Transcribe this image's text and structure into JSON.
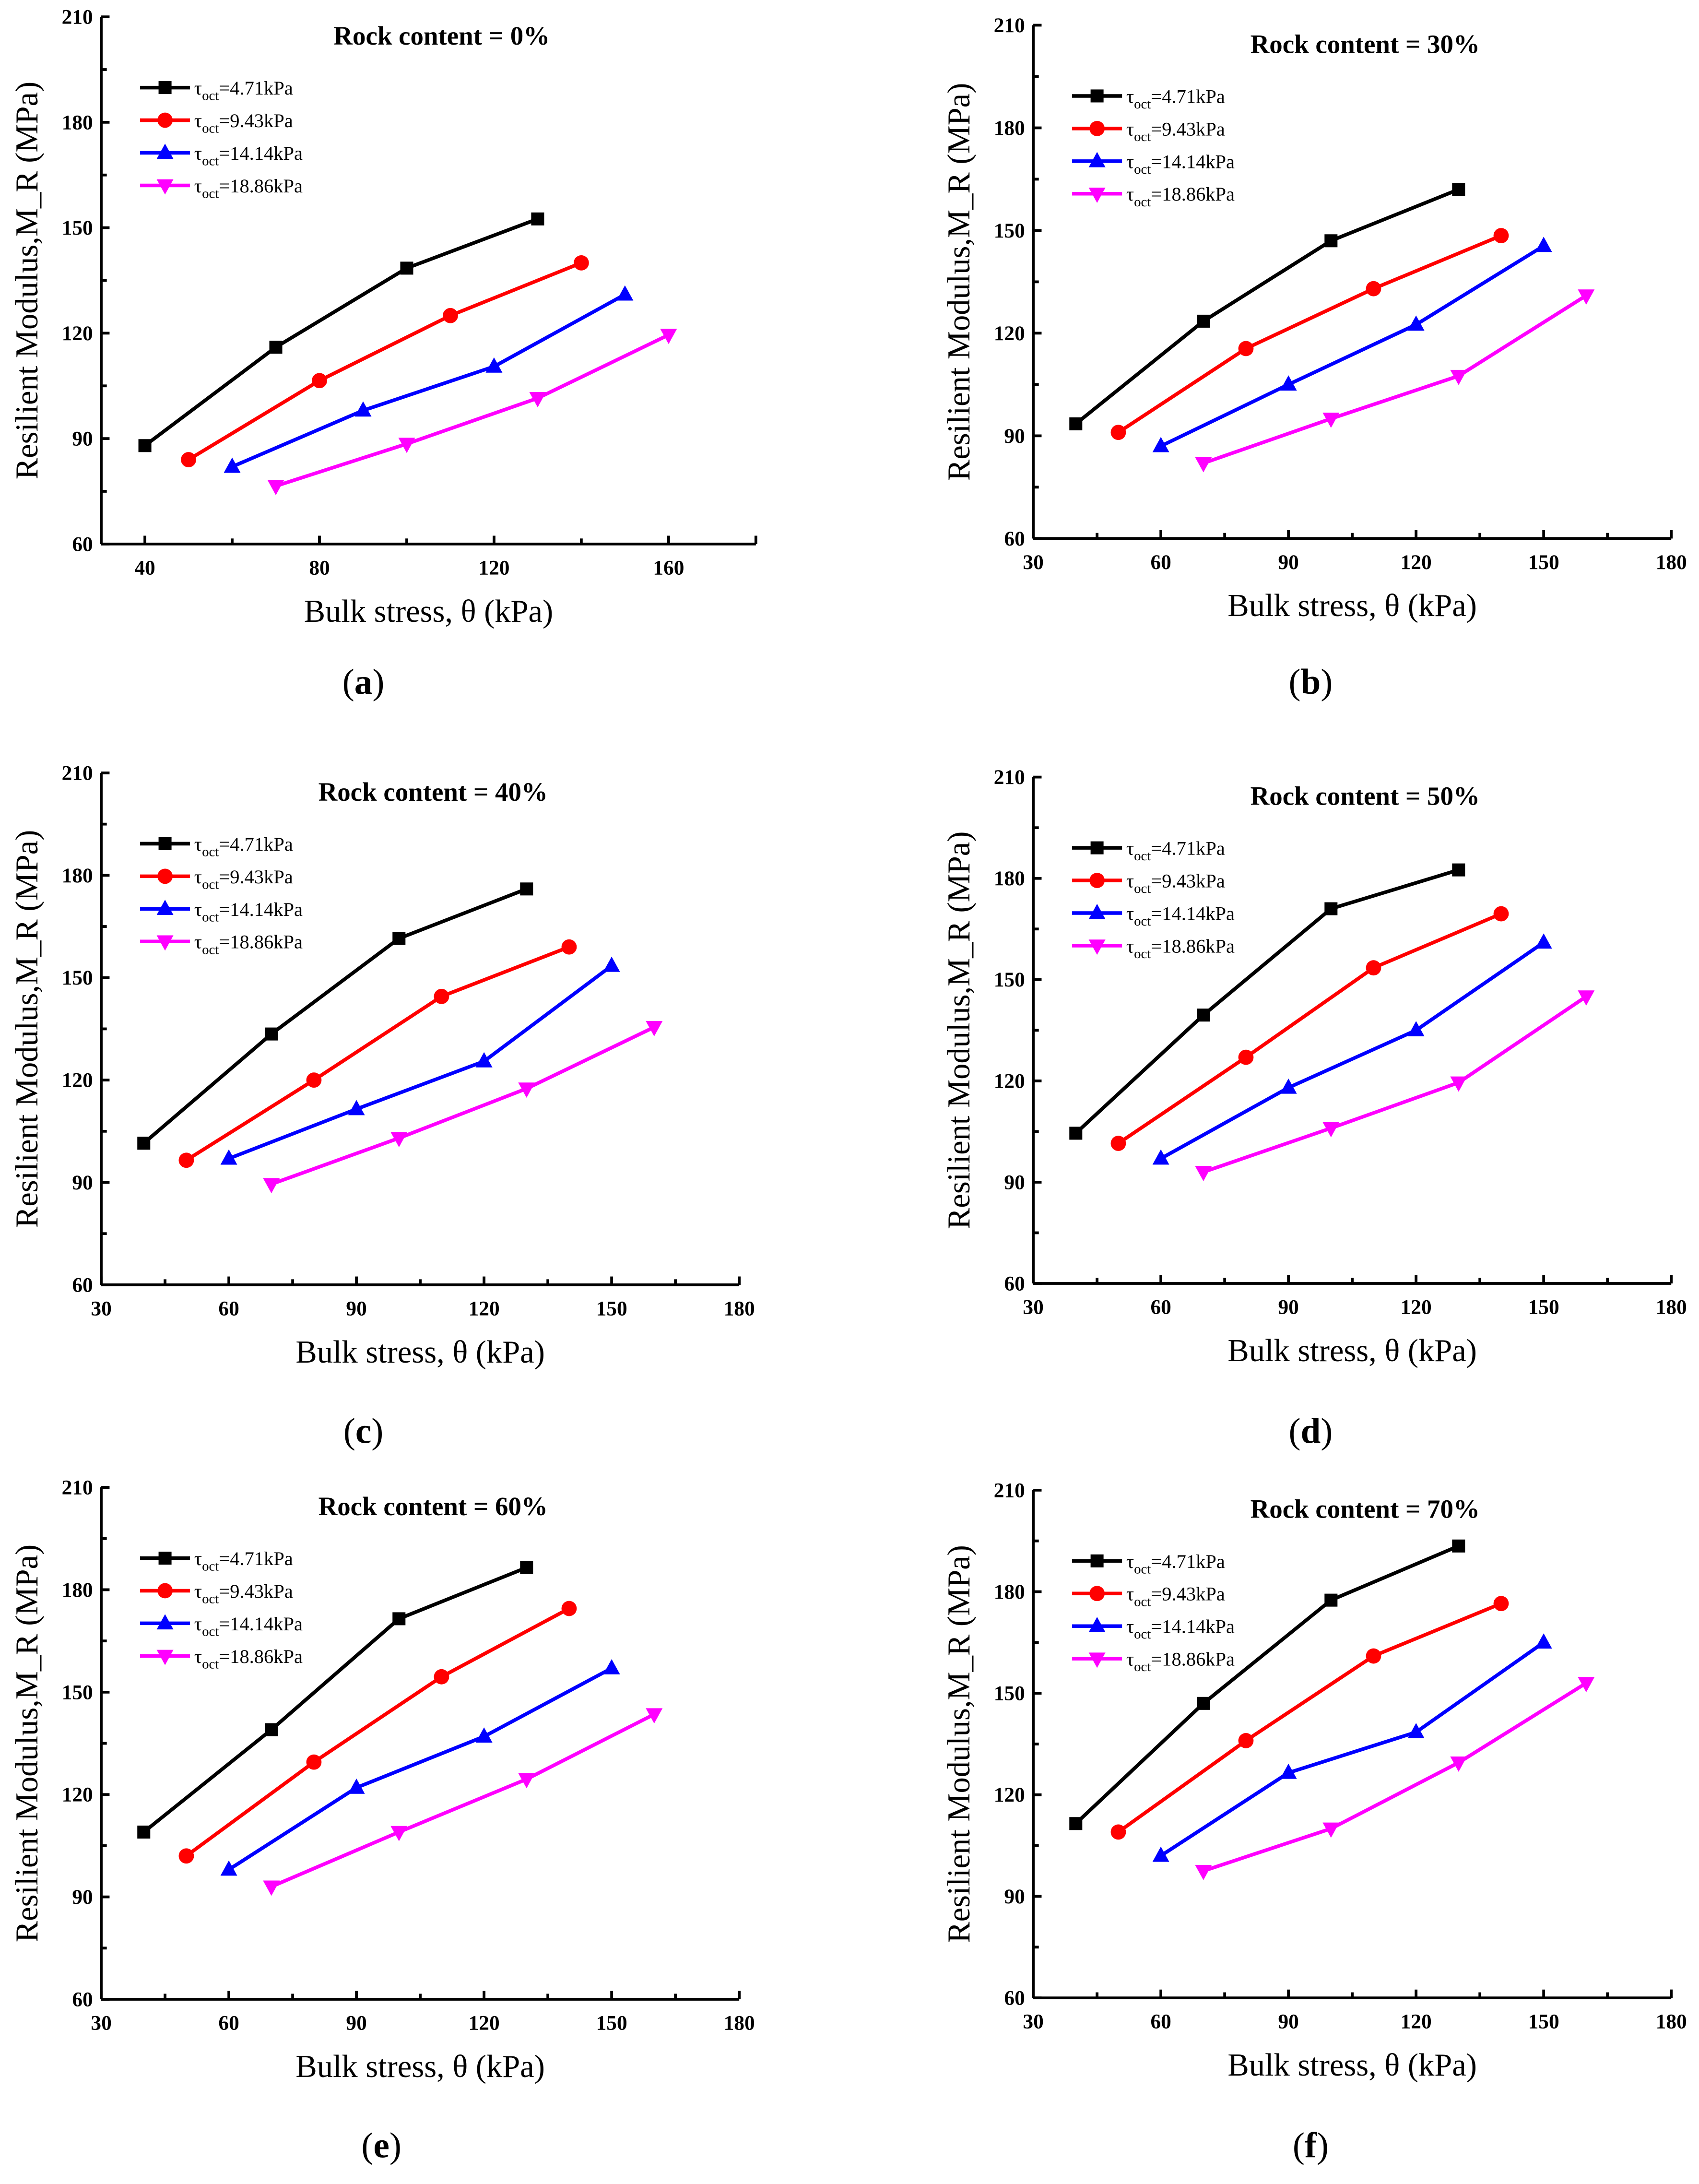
{
  "legend_symbol": "τ",
  "legend_subscript": "oct",
  "series_colors": [
    "#000000",
    "#ff0000",
    "#0000ff",
    "#ff00ff"
  ],
  "series_markers": [
    "square",
    "circle",
    "triangle-up",
    "triangle-down"
  ],
  "chart_data": [
    {
      "type": "line",
      "caption": "a",
      "title": "Rock content = 0%",
      "xlabel": "Bulk stress, θ (kPa)",
      "ylabel": "Resilient Modulus,M_R (MPa)",
      "xlim": [
        30,
        180
      ],
      "ylim": [
        60,
        210
      ],
      "xticks": [
        40,
        80,
        120,
        160
      ],
      "yticks": [
        60,
        90,
        120,
        150,
        180,
        210
      ],
      "legend": "top-left",
      "series": [
        {
          "name": "=4.71kPa",
          "x": [
            40,
            70,
            100,
            130
          ],
          "y": [
            88,
            116,
            138.5,
            152.5
          ]
        },
        {
          "name": "=9.43kPa",
          "x": [
            50,
            80,
            110,
            140
          ],
          "y": [
            84,
            106.5,
            125,
            140
          ]
        },
        {
          "name": "=14.14kPa",
          "x": [
            60,
            90,
            120,
            150
          ],
          "y": [
            82,
            98,
            110.5,
            131
          ]
        },
        {
          "name": "=18.86kPa",
          "x": [
            70,
            100,
            130,
            160
          ],
          "y": [
            76.5,
            88.5,
            101.5,
            119.5
          ]
        }
      ]
    },
    {
      "type": "line",
      "caption": "b",
      "title": "Rock content = 30%",
      "xlabel": "Bulk stress, θ (kPa)",
      "ylabel": "Resilient Modulus,M_R (MPa)",
      "xlim": [
        30,
        180
      ],
      "ylim": [
        60,
        210
      ],
      "xticks": [
        30,
        60,
        90,
        120,
        150,
        180
      ],
      "yticks": [
        60,
        90,
        120,
        150,
        180,
        210
      ],
      "legend": "top-left",
      "series": [
        {
          "name": "=4.71kPa",
          "x": [
            40,
            70,
            100,
            130
          ],
          "y": [
            93.5,
            123.5,
            147,
            162
          ]
        },
        {
          "name": "=9.43kPa",
          "x": [
            50,
            80,
            110,
            140
          ],
          "y": [
            91,
            115.5,
            133,
            148.5
          ]
        },
        {
          "name": "=14.14kPa",
          "x": [
            60,
            90,
            120,
            150
          ],
          "y": [
            87,
            105,
            122.5,
            145.5
          ]
        },
        {
          "name": "=18.86kPa",
          "x": [
            70,
            100,
            130,
            160
          ],
          "y": [
            82,
            95,
            107.5,
            131
          ]
        }
      ]
    },
    {
      "type": "line",
      "caption": "c",
      "title": "Rock content = 40%",
      "xlabel": "Bulk stress, θ (kPa)",
      "ylabel": "Resilient Modulus,M_R (MPa)",
      "xlim": [
        30,
        180
      ],
      "ylim": [
        60,
        210
      ],
      "xticks": [
        30,
        60,
        90,
        120,
        150,
        180
      ],
      "yticks": [
        60,
        90,
        120,
        150,
        180,
        210
      ],
      "legend": "top-left",
      "series": [
        {
          "name": "=4.71kPa",
          "x": [
            40,
            70,
            100,
            130
          ],
          "y": [
            101.5,
            133.5,
            161.5,
            176
          ]
        },
        {
          "name": "=9.43kPa",
          "x": [
            50,
            80,
            110,
            140
          ],
          "y": [
            96.5,
            120,
            144.5,
            159
          ]
        },
        {
          "name": "=14.14kPa",
          "x": [
            60,
            90,
            120,
            150
          ],
          "y": [
            97,
            111.5,
            125.5,
            153.5
          ]
        },
        {
          "name": "=18.86kPa",
          "x": [
            70,
            100,
            130,
            160
          ],
          "y": [
            89.5,
            103,
            117.5,
            135.5
          ]
        }
      ]
    },
    {
      "type": "line",
      "caption": "d",
      "title": "Rock content = 50%",
      "xlabel": "Bulk stress, θ (kPa)",
      "ylabel": "Resilient Modulus,M_R (MPa)",
      "xlim": [
        30,
        180
      ],
      "ylim": [
        60,
        210
      ],
      "xticks": [
        30,
        60,
        90,
        120,
        150,
        180
      ],
      "yticks": [
        60,
        90,
        120,
        150,
        180,
        210
      ],
      "legend": "top-left",
      "series": [
        {
          "name": "=4.71kPa",
          "x": [
            40,
            70,
            100,
            130
          ],
          "y": [
            104.5,
            139.5,
            171,
            182.5
          ]
        },
        {
          "name": "=9.43kPa",
          "x": [
            50,
            80,
            110,
            140
          ],
          "y": [
            101.5,
            127,
            153.5,
            169.5
          ]
        },
        {
          "name": "=14.14kPa",
          "x": [
            60,
            90,
            120,
            150
          ],
          "y": [
            97,
            118,
            135,
            161
          ]
        },
        {
          "name": "=18.86kPa",
          "x": [
            70,
            100,
            130,
            160
          ],
          "y": [
            93,
            106,
            119.5,
            145
          ]
        }
      ]
    },
    {
      "type": "line",
      "caption": "e",
      "title": "Rock content = 60%",
      "xlabel": "Bulk stress, θ (kPa)",
      "ylabel": "Resilient Modulus,M_R (MPa)",
      "xlim": [
        30,
        180
      ],
      "ylim": [
        60,
        210
      ],
      "xticks": [
        30,
        60,
        90,
        120,
        150,
        180
      ],
      "yticks": [
        60,
        90,
        120,
        150,
        180,
        210
      ],
      "legend": "top-left",
      "series": [
        {
          "name": "=4.71kPa",
          "x": [
            40,
            70,
            100,
            130
          ],
          "y": [
            109,
            139,
            171.5,
            186.5
          ]
        },
        {
          "name": "=9.43kPa",
          "x": [
            50,
            80,
            110,
            140
          ],
          "y": [
            102,
            129.5,
            154.5,
            174.5
          ]
        },
        {
          "name": "=14.14kPa",
          "x": [
            60,
            90,
            120,
            150
          ],
          "y": [
            98,
            122,
            137,
            157
          ]
        },
        {
          "name": "=18.86kPa",
          "x": [
            70,
            100,
            130,
            160
          ],
          "y": [
            93,
            109,
            124.5,
            143.5
          ]
        }
      ]
    },
    {
      "type": "line",
      "caption": "f",
      "title": "Rock content = 70%",
      "xlabel": "Bulk stress, θ (kPa)",
      "ylabel": "Resilient Modulus,M_R (MPa)",
      "xlim": [
        30,
        180
      ],
      "ylim": [
        60,
        210
      ],
      "xticks": [
        30,
        60,
        90,
        120,
        150,
        180
      ],
      "yticks": [
        60,
        90,
        120,
        150,
        180,
        210
      ],
      "legend": "top-left",
      "series": [
        {
          "name": "=4.71kPa",
          "x": [
            40,
            70,
            100,
            130
          ],
          "y": [
            111.5,
            147,
            177.5,
            193.5
          ]
        },
        {
          "name": "=9.43kPa",
          "x": [
            50,
            80,
            110,
            140
          ],
          "y": [
            109,
            136,
            161,
            176.5
          ]
        },
        {
          "name": "=14.14kPa",
          "x": [
            60,
            90,
            120,
            150
          ],
          "y": [
            102,
            126.5,
            138.5,
            165
          ]
        },
        {
          "name": "=18.86kPa",
          "x": [
            70,
            100,
            130,
            160
          ],
          "y": [
            97.5,
            110,
            129.5,
            153
          ]
        }
      ]
    }
  ]
}
